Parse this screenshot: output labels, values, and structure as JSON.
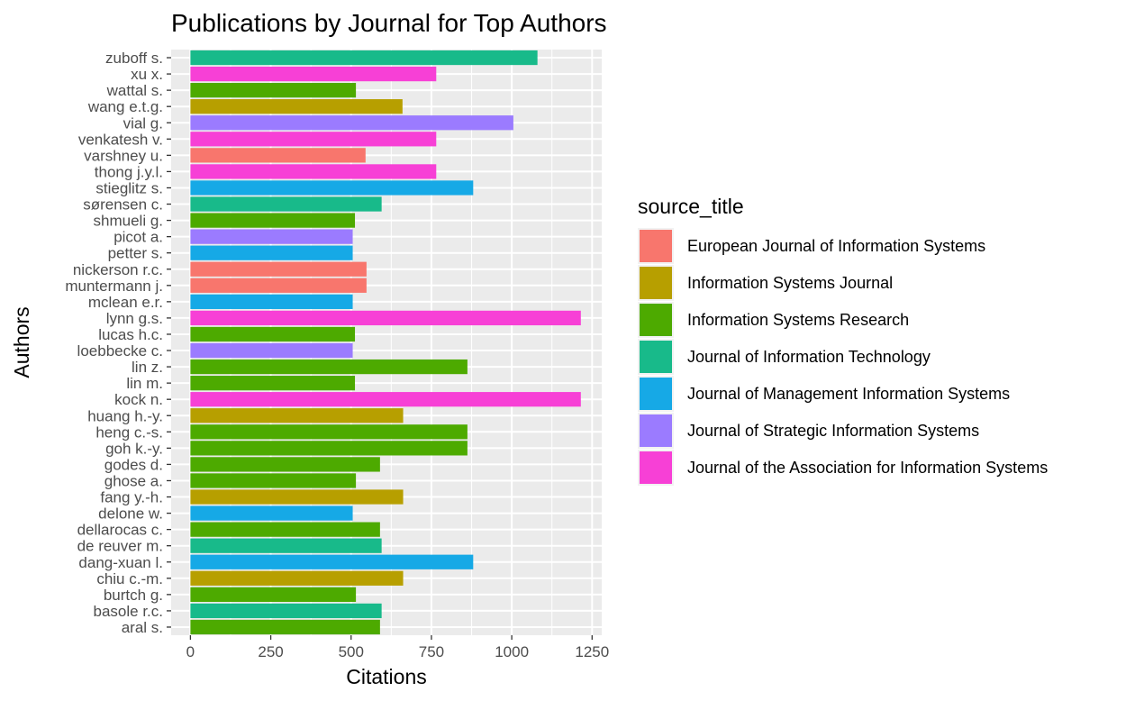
{
  "chart_data": {
    "type": "bar",
    "orientation": "horizontal",
    "title": "Publications by Journal for Top Authors",
    "xlabel": "Citations",
    "ylabel": "Authors",
    "xlim": [
      -60,
      1280
    ],
    "xticks": [
      0,
      250,
      500,
      750,
      1000,
      1250
    ],
    "xtick_labels": [
      "0",
      "250",
      "500",
      "750",
      "1000",
      "1250"
    ],
    "grid": true,
    "legend_position": "right",
    "legend_title": "source_title",
    "journals": [
      {
        "name": "European Journal of Information Systems",
        "color": "#F8766D"
      },
      {
        "name": "Information Systems Journal",
        "color": "#B79F00"
      },
      {
        "name": "Information Systems Research",
        "color": "#4DAA00"
      },
      {
        "name": "Journal of Information Technology",
        "color": "#18BA8A"
      },
      {
        "name": "Journal of Management Information Systems",
        "color": "#16A9E6"
      },
      {
        "name": "Journal of Strategic Information Systems",
        "color": "#9B7BFF"
      },
      {
        "name": "Journal of the Association for Information Systems",
        "color": "#F740D6"
      }
    ],
    "categories": [
      "zuboff s.",
      "xu x.",
      "wattal s.",
      "wang e.t.g.",
      "vial g.",
      "venkatesh v.",
      "varshney u.",
      "thong j.y.l.",
      "stieglitz s.",
      "sørensen c.",
      "shmueli g.",
      "picot a.",
      "petter s.",
      "nickerson r.c.",
      "muntermann j.",
      "mclean e.r.",
      "lynn g.s.",
      "lucas h.c.",
      "loebbecke c.",
      "lin z.",
      "lin m.",
      "kock n.",
      "huang h.-y.",
      "heng c.-s.",
      "goh k.-y.",
      "godes d.",
      "ghose a.",
      "fang y.-h.",
      "delone w.",
      "dellarocas c.",
      "de reuver m.",
      "dang-xuan l.",
      "chiu c.-m.",
      "burtch g.",
      "basole r.c.",
      "aral s."
    ],
    "values": [
      1080,
      765,
      515,
      660,
      1005,
      765,
      545,
      765,
      880,
      595,
      512,
      505,
      505,
      548,
      548,
      505,
      1215,
      512,
      505,
      862,
      512,
      1215,
      662,
      862,
      862,
      590,
      515,
      662,
      505,
      590,
      595,
      880,
      662,
      515,
      595,
      590
    ],
    "journal_index": [
      3,
      6,
      2,
      1,
      5,
      6,
      0,
      6,
      4,
      3,
      2,
      5,
      4,
      0,
      0,
      4,
      6,
      2,
      5,
      2,
      2,
      6,
      1,
      2,
      2,
      2,
      2,
      1,
      4,
      2,
      3,
      4,
      1,
      2,
      3,
      2
    ]
  }
}
